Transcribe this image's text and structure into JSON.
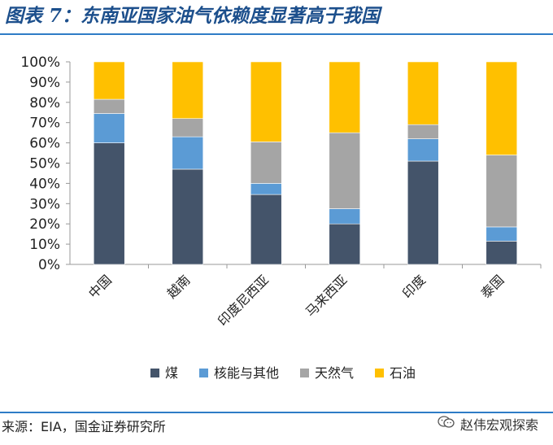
{
  "title": "图表 7：东南亚国家油气依赖度显著高于我国",
  "source": "来源：EIA，国金证券研究所",
  "brand": {
    "label": "赵伟宏观探索",
    "icon": "wechat-icon"
  },
  "colors": {
    "accent": "#2e7cc6",
    "title": "#1c4f8c"
  },
  "chart_data": {
    "type": "bar",
    "stacked": true,
    "categories": [
      "中国",
      "越南",
      "印度尼西亚",
      "马来西亚",
      "印度",
      "泰国"
    ],
    "series": [
      {
        "name": "煤",
        "color": "#44546a",
        "values": [
          60,
          47,
          34.5,
          20,
          51,
          11.5
        ]
      },
      {
        "name": "核能与其他",
        "color": "#5b9bd5",
        "values": [
          14.5,
          16,
          5.5,
          7.5,
          11,
          7
        ]
      },
      {
        "name": "天然气",
        "color": "#a5a5a5",
        "values": [
          7,
          9,
          20.5,
          37.5,
          7,
          35.5
        ]
      },
      {
        "name": "石油",
        "color": "#ffc000",
        "values": [
          18.5,
          28,
          39.5,
          35,
          31,
          46
        ]
      }
    ],
    "ylim": [
      0,
      100
    ],
    "yticks": [
      "0%",
      "10%",
      "20%",
      "30%",
      "40%",
      "50%",
      "60%",
      "70%",
      "80%",
      "90%",
      "100%"
    ],
    "legend": "bottom",
    "grid": false
  }
}
